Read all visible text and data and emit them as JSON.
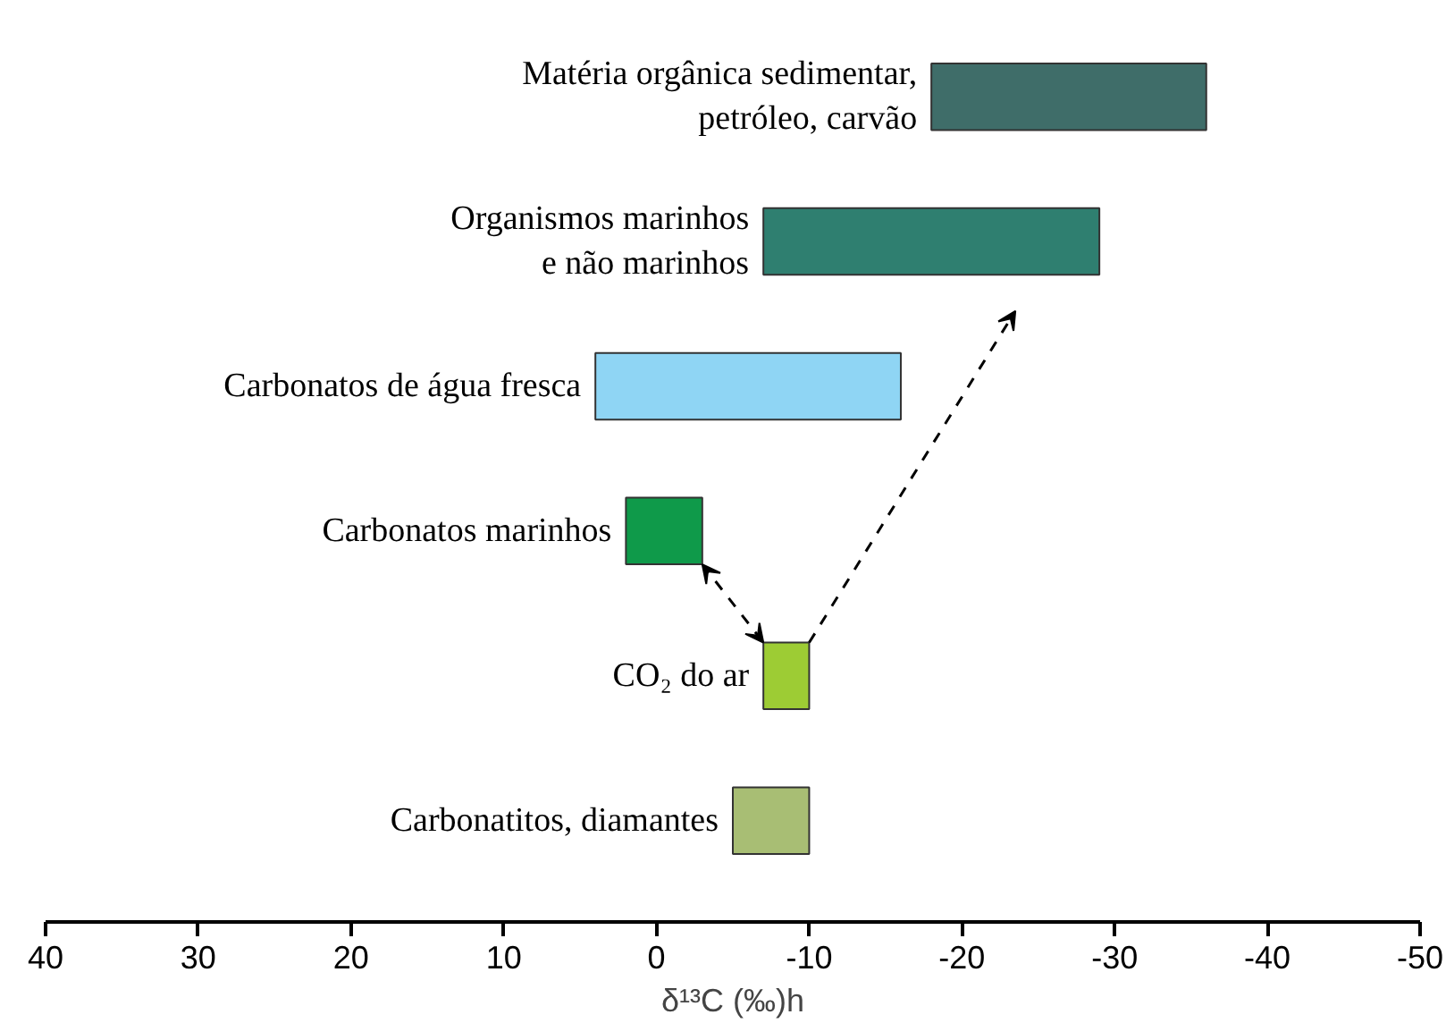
{
  "chart_data": {
    "type": "bar",
    "orientation": "horizontal",
    "categories": [
      "Matéria orgânica sedimentar,\npetróleo, carvão",
      "Organismos marinhos\ne não marinhos",
      "Carbonatos de água fresca",
      "Carbonatos marinhos",
      "CO₂ do ar",
      "Carbonatitos, diamantes"
    ],
    "base": [
      -18,
      -7,
      4,
      2,
      -7,
      -5
    ],
    "values": [
      -18,
      -22,
      -20,
      -5,
      -3,
      -5
    ],
    "colors": [
      "#3f6d69",
      "#2f7f70",
      "#8fd5f4",
      "#0f9a4a",
      "#9dcc34",
      "#a8be74"
    ],
    "xlim": [
      40,
      -50
    ],
    "xticks": [
      40,
      30,
      20,
      10,
      0,
      -10,
      -20,
      -30,
      -40,
      -50
    ],
    "xlabel": "δ¹³C (‰)h"
  }
}
